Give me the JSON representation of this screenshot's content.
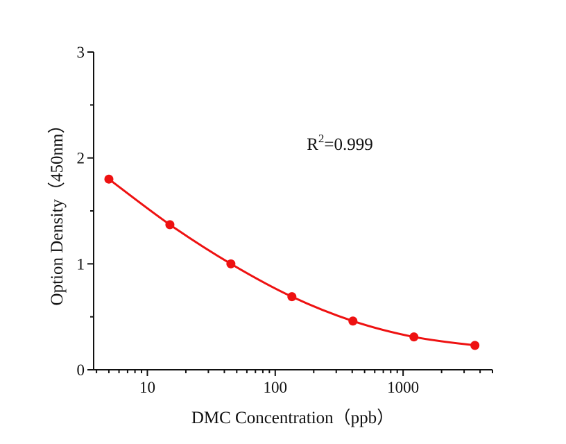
{
  "chart_data": {
    "type": "line",
    "series_name": "dmc-standard-curve",
    "x": [
      5,
      15,
      45,
      135,
      405,
      1215,
      3645
    ],
    "y": [
      1.8,
      1.37,
      1.0,
      0.69,
      0.46,
      0.31,
      0.23
    ],
    "title": "",
    "xlabel": "DMC Concentration（ppb）",
    "ylabel": "Option Density（450nm）",
    "annotation": {
      "text": "R²=0.999",
      "base": "R",
      "sup": "2",
      "rest": "=0.999"
    },
    "x_scale": "log",
    "y_scale": "linear",
    "xlim": [
      3.8,
      5000
    ],
    "ylim": [
      0,
      3
    ],
    "x_major_ticks": [
      {
        "value": 10,
        "label": "10"
      },
      {
        "value": 100,
        "label": "100"
      },
      {
        "value": 1000,
        "label": "1000"
      }
    ],
    "x_minor_ticks": [
      4,
      5,
      6,
      7,
      8,
      9,
      20,
      30,
      40,
      50,
      60,
      70,
      80,
      90,
      200,
      300,
      400,
      500,
      600,
      700,
      800,
      900,
      2000,
      3000,
      4000,
      5000
    ],
    "y_major_ticks": [
      {
        "value": 0,
        "label": "0"
      },
      {
        "value": 1,
        "label": "1"
      },
      {
        "value": 2,
        "label": "2"
      },
      {
        "value": 3,
        "label": "3"
      }
    ],
    "y_minor_ticks": [
      0.5,
      1.5,
      2.5
    ],
    "grid": false,
    "legend": false,
    "markers": true,
    "colors": {
      "series": "#ee1111",
      "axis": "#111111",
      "text": "#111111",
      "background": "#ffffff"
    }
  }
}
